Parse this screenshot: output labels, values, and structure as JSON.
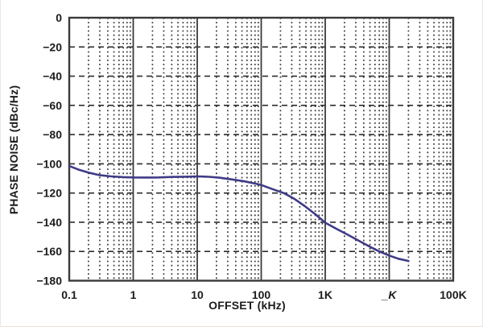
{
  "figure": {
    "background": "#ffffff",
    "edge_color": "#ece7e3"
  },
  "chart_data": {
    "type": "line",
    "title": "",
    "xlabel": "OFFSET (kHz)",
    "ylabel": "PHASE NOISE (dBc/Hz)",
    "x_scale": "log",
    "y_scale": "linear",
    "xlim": [
      0.1,
      100000
    ],
    "ylim": [
      -180,
      0
    ],
    "grid": "on",
    "legend": "none",
    "x_ticks": [
      {
        "v": 0.1,
        "label": "0.1"
      },
      {
        "v": 1,
        "label": "1"
      },
      {
        "v": 10,
        "label": "10"
      },
      {
        "v": 100,
        "label": "100"
      },
      {
        "v": 1000,
        "label": "1K"
      },
      {
        "v": 10000,
        "label": "_K",
        "glitch": true
      },
      {
        "v": 100000,
        "label": "100K"
      }
    ],
    "y_ticks": [
      {
        "v": 0,
        "label": "0"
      },
      {
        "v": -20,
        "label": "−20"
      },
      {
        "v": -40,
        "label": "−40"
      },
      {
        "v": -60,
        "label": "−60"
      },
      {
        "v": -80,
        "label": "−80"
      },
      {
        "v": -100,
        "label": "−100"
      },
      {
        "v": -120,
        "label": "−120"
      },
      {
        "v": -140,
        "label": "−140"
      },
      {
        "v": -160,
        "label": "−160"
      },
      {
        "v": -180,
        "label": "−180"
      }
    ],
    "minor_x_multiples": [
      2,
      3,
      4,
      5,
      6,
      7,
      8,
      9
    ],
    "style": {
      "frame_color": "#3a3a3a",
      "major_grid_color": "#2e2e2e",
      "decade_line_color": "#3a3a3a",
      "minor_grid_color": "#383838",
      "text_color": "#1c1c1c",
      "curve_color": "#3f3b87"
    },
    "series": [
      {
        "name": "phase-noise",
        "color": "#3f3b87",
        "points": [
          [
            0.1,
            -101.5
          ],
          [
            0.14,
            -104.0
          ],
          [
            0.2,
            -106.0
          ],
          [
            0.3,
            -107.8
          ],
          [
            0.45,
            -108.6
          ],
          [
            0.7,
            -109.1
          ],
          [
            1,
            -109.3
          ],
          [
            1.6,
            -109.4
          ],
          [
            2.5,
            -109.3
          ],
          [
            4,
            -109.0
          ],
          [
            6.5,
            -108.8
          ],
          [
            10,
            -108.6
          ],
          [
            15,
            -108.9
          ],
          [
            22,
            -109.5
          ],
          [
            35,
            -110.7
          ],
          [
            55,
            -112.0
          ],
          [
            80,
            -113.5
          ],
          [
            100,
            -114.5
          ],
          [
            150,
            -117.3
          ],
          [
            225,
            -120.0
          ],
          [
            330,
            -124.0
          ],
          [
            480,
            -129.0
          ],
          [
            700,
            -134.5
          ],
          [
            1000,
            -140.3
          ],
          [
            1500,
            -144.5
          ],
          [
            2200,
            -148.3
          ],
          [
            3300,
            -152.5
          ],
          [
            5000,
            -156.8
          ],
          [
            7000,
            -160.0
          ],
          [
            10000,
            -162.8
          ],
          [
            14000,
            -165.0
          ],
          [
            20000,
            -166.5
          ]
        ]
      }
    ]
  }
}
